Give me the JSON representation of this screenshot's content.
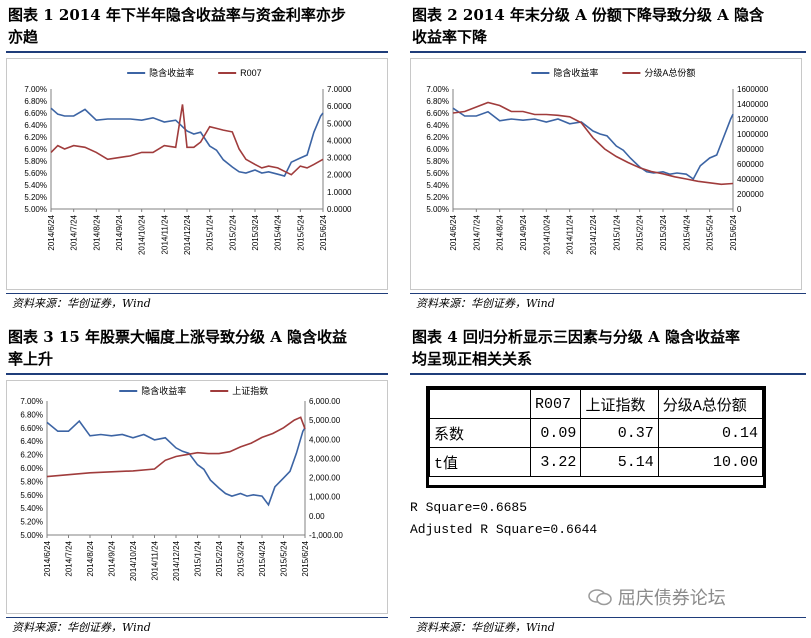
{
  "captions": {
    "fig1": "图表 1 2014年下半年隐含收益率与资金利率亦步亦趋",
    "fig2": "图表 2 2014年末分级A份额下降导致分级A隐含收益率下降",
    "fig3": "图表 3 15年股票大幅度上涨导致分级A隐含收益率上升",
    "fig4": "图表 4 回归分析显示三因素与分级A隐含收益率均呈现正相关关系"
  },
  "caption_lines": {
    "fig1": [
      "图表 1   2014 年下半年隐含收益率与资金利率亦步",
      "亦趋"
    ],
    "fig2": [
      "图表 2   2014 年末分级 A 份额下降导致分级 A 隐含",
      "收益率下降"
    ],
    "fig3": [
      "图表 3   15 年股票大幅度上涨导致分级 A 隐含收益",
      "率上升"
    ],
    "fig4": [
      "图表 4   回归分析显示三因素与分级 A 隐含收益率",
      "均呈现正相关关系"
    ]
  },
  "source_note": "资料来源：华创证券，Wind",
  "watermark": "屈庆债券论坛",
  "colors": {
    "implied_yield": "#3c64a4",
    "second_series": "#a03c3c",
    "rule": "#1f3d7a"
  },
  "chart_data": [
    {
      "type": "line",
      "x_ticks": [
        "2014/6/24",
        "2014/7/24",
        "2014/8/24",
        "2014/9/24",
        "2014/10/24",
        "2014/11/24",
        "2014/12/24",
        "2015/1/24",
        "2015/2/24",
        "2015/3/24",
        "2015/4/24",
        "2015/5/24",
        "2015/6/24"
      ],
      "y_left_ticks": [
        "7.00%",
        "6.80%",
        "6.60%",
        "6.40%",
        "6.20%",
        "6.00%",
        "5.80%",
        "5.60%",
        "5.40%",
        "5.20%",
        "5.00%"
      ],
      "y_right_ticks": [
        "7.0000",
        "6.0000",
        "5.0000",
        "4.0000",
        "3.0000",
        "2.0000",
        "1.0000",
        "0.0000"
      ],
      "ylim_left": [
        5.0,
        7.0
      ],
      "ylim_right": [
        0,
        7
      ],
      "legend_position": "top",
      "series": [
        {
          "name": "隐含收益率",
          "axis": "left",
          "x": [
            0,
            0.3,
            0.6,
            1,
            1.5,
            2,
            2.5,
            3,
            3.5,
            4,
            4.5,
            5,
            5.5,
            6,
            6.3,
            6.6,
            7,
            7.3,
            7.6,
            8,
            8.3,
            8.6,
            9,
            9.3,
            9.6,
            10,
            10.3,
            10.6,
            11,
            11.3,
            11.6,
            11.9,
            12
          ],
          "values": [
            6.68,
            6.58,
            6.55,
            6.55,
            6.66,
            6.48,
            6.5,
            6.5,
            6.5,
            6.48,
            6.52,
            6.45,
            6.48,
            6.3,
            6.25,
            6.28,
            6.05,
            5.98,
            5.82,
            5.7,
            5.62,
            5.6,
            5.65,
            5.6,
            5.62,
            5.58,
            5.55,
            5.78,
            5.85,
            5.9,
            6.28,
            6.55,
            6.6
          ]
        },
        {
          "name": "R007",
          "axis": "right",
          "x": [
            0,
            0.3,
            0.6,
            1,
            1.5,
            2,
            2.5,
            3,
            3.5,
            4,
            4.5,
            5,
            5.5,
            5.8,
            6,
            6.3,
            6.6,
            7,
            7.3,
            7.6,
            8,
            8.3,
            8.6,
            9,
            9.3,
            9.6,
            10,
            10.3,
            10.6,
            11,
            11.3,
            11.6,
            12
          ],
          "values": [
            3.3,
            3.7,
            3.5,
            3.7,
            3.6,
            3.3,
            2.9,
            3.0,
            3.1,
            3.3,
            3.3,
            3.7,
            3.6,
            6.1,
            3.6,
            3.6,
            3.9,
            4.8,
            4.7,
            4.6,
            4.5,
            3.5,
            2.9,
            2.6,
            2.4,
            2.5,
            2.4,
            2.2,
            2.0,
            2.5,
            2.4,
            2.6,
            2.9
          ]
        }
      ]
    },
    {
      "type": "line",
      "x_ticks": [
        "2014/6/24",
        "2014/7/24",
        "2014/8/24",
        "2014/9/24",
        "2014/10/24",
        "2014/11/24",
        "2014/12/24",
        "2015/1/24",
        "2015/2/24",
        "2015/3/24",
        "2015/4/24",
        "2015/5/24",
        "2015/6/24"
      ],
      "y_left_ticks": [
        "7.00%",
        "6.80%",
        "6.60%",
        "6.40%",
        "6.20%",
        "6.00%",
        "5.80%",
        "5.60%",
        "5.40%",
        "5.20%",
        "5.00%"
      ],
      "y_right_ticks": [
        "1600000",
        "1400000",
        "1200000",
        "1000000",
        "800000",
        "600000",
        "400000",
        "200000",
        "0"
      ],
      "ylim_left": [
        5.0,
        7.0
      ],
      "ylim_right": [
        0,
        1600000
      ],
      "legend_position": "top",
      "series": [
        {
          "name": "隐含收益率",
          "axis": "left",
          "x": [
            0,
            0.5,
            1,
            1.5,
            2,
            2.5,
            3,
            3.5,
            4,
            4.5,
            5,
            5.5,
            6,
            6.3,
            6.6,
            7,
            7.3,
            7.6,
            8,
            8.3,
            8.6,
            9,
            9.3,
            9.6,
            10,
            10.3,
            10.6,
            11,
            11.3,
            11.6,
            11.9,
            12
          ],
          "values": [
            6.68,
            6.55,
            6.55,
            6.62,
            6.47,
            6.5,
            6.48,
            6.5,
            6.45,
            6.5,
            6.42,
            6.45,
            6.3,
            6.25,
            6.22,
            6.05,
            5.98,
            5.85,
            5.7,
            5.62,
            5.6,
            5.62,
            5.58,
            5.6,
            5.58,
            5.5,
            5.72,
            5.85,
            5.9,
            6.2,
            6.5,
            6.58
          ]
        },
        {
          "name": "分级A总份额",
          "axis": "right",
          "x": [
            0,
            0.5,
            1,
            1.5,
            2,
            2.5,
            3,
            3.5,
            4,
            4.5,
            5,
            5.5,
            6,
            6.5,
            7,
            7.5,
            8,
            8.5,
            9,
            9.5,
            10,
            10.5,
            11,
            11.5,
            12
          ],
          "values": [
            1280000,
            1300000,
            1360000,
            1420000,
            1380000,
            1300000,
            1300000,
            1260000,
            1260000,
            1250000,
            1230000,
            1150000,
            950000,
            800000,
            700000,
            620000,
            550000,
            500000,
            470000,
            430000,
            400000,
            370000,
            350000,
            330000,
            340000
          ]
        }
      ]
    },
    {
      "type": "line",
      "x_ticks": [
        "2014/6/24",
        "2014/7/24",
        "2014/8/24",
        "2014/9/24",
        "2014/10/24",
        "2014/11/24",
        "2014/12/24",
        "2015/1/24",
        "2015/2/24",
        "2015/3/24",
        "2015/4/24",
        "2015/5/24",
        "2015/6/24"
      ],
      "y_left_ticks": [
        "7.00%",
        "6.80%",
        "6.60%",
        "6.40%",
        "6.20%",
        "6.00%",
        "5.80%",
        "5.60%",
        "5.40%",
        "5.20%",
        "5.00%"
      ],
      "y_right_ticks": [
        "6,000.00",
        "5,000.00",
        "4,000.00",
        "3,000.00",
        "2,000.00",
        "1,000.00",
        "0.00",
        "-1,000.00"
      ],
      "ylim_left": [
        5.0,
        7.0
      ],
      "ylim_right": [
        -1000,
        6000
      ],
      "legend_position": "top",
      "series": [
        {
          "name": "隐含收益率",
          "axis": "left",
          "x": [
            0,
            0.5,
            1,
            1.5,
            2,
            2.5,
            3,
            3.5,
            4,
            4.5,
            5,
            5.5,
            6,
            6.3,
            6.6,
            7,
            7.3,
            7.6,
            8,
            8.3,
            8.6,
            9,
            9.3,
            9.6,
            10,
            10.3,
            10.6,
            11,
            11.3,
            11.6,
            11.9,
            12
          ],
          "values": [
            6.68,
            6.55,
            6.55,
            6.7,
            6.48,
            6.5,
            6.48,
            6.5,
            6.45,
            6.5,
            6.42,
            6.45,
            6.3,
            6.25,
            6.22,
            6.05,
            5.98,
            5.82,
            5.7,
            5.62,
            5.58,
            5.62,
            5.58,
            5.6,
            5.58,
            5.45,
            5.72,
            5.85,
            5.95,
            6.22,
            6.55,
            6.6
          ]
        },
        {
          "name": "上证指数",
          "axis": "right",
          "x": [
            0,
            1,
            2,
            3,
            4,
            5,
            5.5,
            6,
            6.5,
            7,
            7.5,
            8,
            8.5,
            9,
            9.5,
            10,
            10.5,
            11,
            11.5,
            11.8,
            12
          ],
          "values": [
            2050,
            2150,
            2250,
            2300,
            2350,
            2450,
            2900,
            3100,
            3200,
            3300,
            3250,
            3250,
            3350,
            3600,
            3800,
            4100,
            4300,
            4600,
            5000,
            5150,
            4550
          ]
        }
      ]
    }
  ],
  "regression_table": {
    "headers": [
      "",
      "R007",
      "上证指数",
      "分级A总份额"
    ],
    "rows": [
      {
        "label": "系数",
        "values": [
          "0.09",
          "0.37",
          "0.14"
        ]
      },
      {
        "label": "t值",
        "values": [
          "3.22",
          "5.14",
          "10.00"
        ]
      }
    ],
    "r_square": "R Square=0.6685",
    "adj_r_square": "Adjusted R Square=0.6644"
  }
}
